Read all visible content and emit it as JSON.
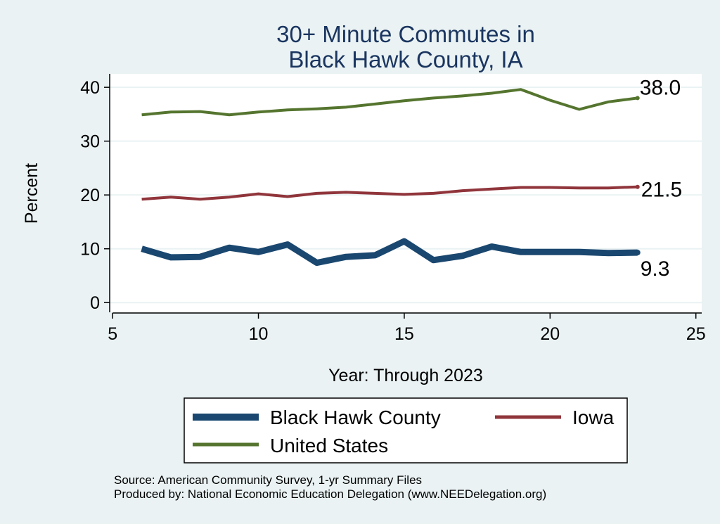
{
  "chart_data": {
    "type": "line",
    "title": [
      "30+ Minute Commutes in",
      "Black Hawk County, IA"
    ],
    "xlabel": "Year: Through 2023",
    "ylabel": "Percent",
    "xlim": [
      4.9,
      25.2
    ],
    "ylim": [
      -1.8,
      42.5
    ],
    "xticks": [
      5,
      10,
      15,
      20,
      25
    ],
    "yticks": [
      0,
      10,
      20,
      30,
      40
    ],
    "grid": "horizontal",
    "legend_position": "bottom",
    "x": [
      6,
      7,
      8,
      9,
      10,
      11,
      12,
      13,
      14,
      15,
      16,
      17,
      18,
      19,
      20,
      21,
      22,
      23
    ],
    "series": [
      {
        "name": "Black Hawk County",
        "color": "#1a476f",
        "values": [
          10.0,
          8.4,
          8.5,
          10.2,
          9.4,
          10.8,
          7.4,
          8.5,
          8.8,
          11.4,
          7.9,
          8.7,
          10.4,
          9.4,
          9.4,
          9.4,
          9.2,
          9.3
        ],
        "end_label": "9.3"
      },
      {
        "name": "Iowa",
        "color": "#90353b",
        "values": [
          19.2,
          19.6,
          19.2,
          19.6,
          20.2,
          19.7,
          20.3,
          20.5,
          20.3,
          20.1,
          20.3,
          20.8,
          21.1,
          21.4,
          21.4,
          21.3,
          21.3,
          21.5
        ],
        "end_label": "21.5"
      },
      {
        "name": "United States",
        "color": "#55752f",
        "values": [
          34.9,
          35.4,
          35.5,
          34.9,
          35.4,
          35.8,
          36.0,
          36.3,
          36.9,
          37.5,
          38.0,
          38.4,
          38.9,
          39.6,
          37.6,
          35.9,
          37.3,
          38.0
        ],
        "end_label": "38.0"
      }
    ]
  },
  "notes": {
    "source": "Source: American Community Survey, 1-yr Summary Files",
    "produced_by": "Produced by: National Economic Education Delegation (www.NEEDelegation.org)"
  }
}
